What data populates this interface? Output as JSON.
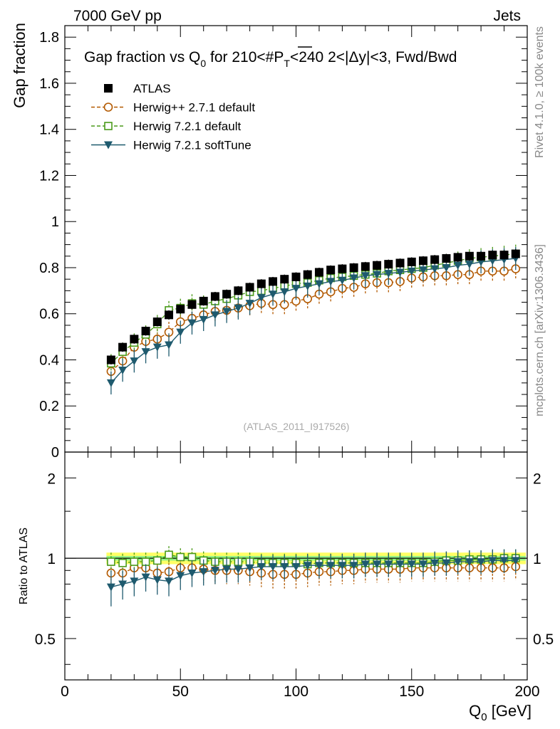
{
  "header": {
    "left": "7000 GeV pp",
    "right": "Jets"
  },
  "side": {
    "rivet": "Rivet 4.1.0, ≥ 100k events",
    "mcplots": "mcplots.cern.ch [arXiv:1306.3436]"
  },
  "analysis_id": "(ATLAS_2011_I917526)",
  "chart_data": [
    {
      "type": "scatter",
      "panel": "main",
      "title_parts": {
        "a": "Gap fraction vs Q",
        "a_sub": "0",
        "b": " for 210<#",
        "c": "P",
        "c_sub": "T",
        "d": "<240  2<|Δy|<3, Fwd/Bwd"
      },
      "ylabel": "Gap fraction",
      "xlim": [
        0,
        200
      ],
      "ylim": [
        0,
        1.85
      ],
      "yticks": [
        0,
        0.2,
        0.4,
        0.6,
        0.8,
        1,
        1.2,
        1.4,
        1.6,
        1.8
      ],
      "ytick_labels": [
        "0",
        "0.2",
        "0.4",
        "0.6",
        "0.8",
        "1",
        "1.2",
        "1.4",
        "1.6",
        "1.8"
      ],
      "x": [
        20,
        25,
        30,
        35,
        40,
        45,
        50,
        55,
        60,
        65,
        70,
        75,
        80,
        85,
        90,
        95,
        100,
        105,
        110,
        115,
        120,
        125,
        130,
        135,
        140,
        145,
        150,
        155,
        160,
        165,
        170,
        175,
        180,
        185,
        190,
        195
      ],
      "series": [
        {
          "name": "ATLAS",
          "marker": "filled-square",
          "color": "#000000",
          "line": "none",
          "values": [
            0.4,
            0.455,
            0.49,
            0.525,
            0.565,
            0.595,
            0.62,
            0.64,
            0.655,
            0.675,
            0.685,
            0.7,
            0.715,
            0.73,
            0.74,
            0.75,
            0.76,
            0.77,
            0.78,
            0.79,
            0.795,
            0.8,
            0.805,
            0.81,
            0.815,
            0.82,
            0.825,
            0.83,
            0.835,
            0.84,
            0.845,
            0.85,
            0.85,
            0.855,
            0.855,
            0.86
          ],
          "err": [
            0.02,
            0.02,
            0.02,
            0.02,
            0.02,
            0.02,
            0.02,
            0.02,
            0.02,
            0.02,
            0.02,
            0.02,
            0.02,
            0.02,
            0.02,
            0.02,
            0.02,
            0.02,
            0.02,
            0.02,
            0.02,
            0.02,
            0.02,
            0.02,
            0.02,
            0.02,
            0.02,
            0.02,
            0.02,
            0.02,
            0.02,
            0.02,
            0.02,
            0.02,
            0.02,
            0.02
          ]
        },
        {
          "name": "Herwig++ 2.7.1 default",
          "marker": "open-circle",
          "color": "#b35900",
          "line": "dashed",
          "values": [
            0.35,
            0.395,
            0.455,
            0.48,
            0.49,
            0.52,
            0.565,
            0.58,
            0.595,
            0.61,
            0.615,
            0.625,
            0.635,
            0.645,
            0.64,
            0.64,
            0.655,
            0.665,
            0.685,
            0.695,
            0.71,
            0.715,
            0.73,
            0.735,
            0.735,
            0.74,
            0.755,
            0.76,
            0.765,
            0.765,
            0.77,
            0.77,
            0.785,
            0.785,
            0.785,
            0.795
          ],
          "err": [
            0.045,
            0.045,
            0.045,
            0.045,
            0.045,
            0.045,
            0.045,
            0.045,
            0.045,
            0.045,
            0.045,
            0.045,
            0.045,
            0.045,
            0.045,
            0.045,
            0.045,
            0.045,
            0.045,
            0.045,
            0.045,
            0.045,
            0.045,
            0.045,
            0.045,
            0.045,
            0.045,
            0.045,
            0.045,
            0.045,
            0.045,
            0.045,
            0.045,
            0.045,
            0.045,
            0.045
          ]
        },
        {
          "name": "Herwig 7.2.1 default",
          "marker": "open-square",
          "color": "#4a9a1a",
          "line": "dashed",
          "values": [
            0.385,
            0.435,
            0.475,
            0.51,
            0.555,
            0.615,
            0.625,
            0.645,
            0.64,
            0.655,
            0.665,
            0.68,
            0.695,
            0.7,
            0.71,
            0.72,
            0.73,
            0.735,
            0.745,
            0.755,
            0.76,
            0.765,
            0.77,
            0.775,
            0.785,
            0.79,
            0.795,
            0.8,
            0.81,
            0.82,
            0.83,
            0.84,
            0.845,
            0.85,
            0.855,
            0.86
          ],
          "err": [
            0.04,
            0.04,
            0.04,
            0.04,
            0.04,
            0.04,
            0.04,
            0.04,
            0.04,
            0.04,
            0.04,
            0.04,
            0.04,
            0.04,
            0.04,
            0.04,
            0.04,
            0.04,
            0.04,
            0.04,
            0.04,
            0.04,
            0.04,
            0.04,
            0.04,
            0.04,
            0.04,
            0.04,
            0.04,
            0.04,
            0.04,
            0.04,
            0.04,
            0.04,
            0.04,
            0.04
          ]
        },
        {
          "name": "Herwig 7.2.1 softTune",
          "marker": "filled-triangle-down",
          "color": "#1e5a6e",
          "line": "solid",
          "values": [
            0.3,
            0.355,
            0.395,
            0.435,
            0.455,
            0.465,
            0.52,
            0.56,
            0.575,
            0.595,
            0.61,
            0.625,
            0.645,
            0.67,
            0.685,
            0.695,
            0.71,
            0.72,
            0.73,
            0.74,
            0.745,
            0.755,
            0.765,
            0.77,
            0.775,
            0.78,
            0.785,
            0.79,
            0.795,
            0.8,
            0.81,
            0.815,
            0.825,
            0.83,
            0.835,
            0.84
          ],
          "err": [
            0.05,
            0.05,
            0.05,
            0.05,
            0.05,
            0.05,
            0.05,
            0.05,
            0.05,
            0.05,
            0.05,
            0.05,
            0.05,
            0.05,
            0.05,
            0.05,
            0.05,
            0.05,
            0.05,
            0.05,
            0.05,
            0.05,
            0.05,
            0.05,
            0.05,
            0.05,
            0.05,
            0.05,
            0.05,
            0.05,
            0.05,
            0.05,
            0.05,
            0.05,
            0.05,
            0.05
          ]
        }
      ]
    },
    {
      "type": "scatter",
      "panel": "ratio",
      "ylabel": "Ratio to ATLAS",
      "xlabel_main": "Q",
      "xlabel_sub": "0",
      "xlabel_unit": " [GeV]",
      "xlim": [
        0,
        200
      ],
      "ylim": [
        0.35,
        2.5
      ],
      "yscale": "log",
      "xticks": [
        0,
        50,
        100,
        150,
        200
      ],
      "xtick_labels": [
        "0",
        "50",
        "100",
        "150",
        "200"
      ],
      "yticks": [
        0.5,
        1,
        2
      ],
      "ytick_labels": [
        "0.5",
        "1",
        "2"
      ],
      "x": [
        20,
        25,
        30,
        35,
        40,
        45,
        50,
        55,
        60,
        65,
        70,
        75,
        80,
        85,
        90,
        95,
        100,
        105,
        110,
        115,
        120,
        125,
        130,
        135,
        140,
        145,
        150,
        155,
        160,
        165,
        170,
        175,
        180,
        185,
        190,
        195
      ],
      "band": {
        "name": "ATLAS uncertainty",
        "low": 0.95,
        "high": 1.05,
        "color": "#ffff66",
        "inner_color": "#66ee99"
      },
      "series": [
        {
          "name": "Herwig++ 2.7.1 default",
          "marker": "open-circle",
          "color": "#b35900",
          "line": "dashed",
          "values": [
            0.88,
            0.88,
            0.92,
            0.92,
            0.88,
            0.89,
            0.92,
            0.92,
            0.91,
            0.9,
            0.9,
            0.9,
            0.89,
            0.88,
            0.87,
            0.87,
            0.87,
            0.88,
            0.89,
            0.89,
            0.9,
            0.9,
            0.91,
            0.91,
            0.91,
            0.91,
            0.92,
            0.92,
            0.92,
            0.92,
            0.92,
            0.92,
            0.92,
            0.92,
            0.92,
            0.93
          ],
          "err": [
            0.1,
            0.1,
            0.1,
            0.1,
            0.1,
            0.1,
            0.1,
            0.1,
            0.1,
            0.1,
            0.1,
            0.1,
            0.1,
            0.1,
            0.1,
            0.1,
            0.1,
            0.1,
            0.1,
            0.1,
            0.1,
            0.1,
            0.1,
            0.1,
            0.1,
            0.1,
            0.1,
            0.1,
            0.1,
            0.1,
            0.1,
            0.1,
            0.1,
            0.1,
            0.1,
            0.1
          ]
        },
        {
          "name": "Herwig 7.2.1 default",
          "marker": "open-square",
          "color": "#4a9a1a",
          "line": "dashed",
          "values": [
            0.97,
            0.96,
            0.97,
            0.97,
            0.98,
            1.03,
            1.01,
            1.01,
            0.98,
            0.97,
            0.97,
            0.97,
            0.97,
            0.96,
            0.96,
            0.96,
            0.96,
            0.95,
            0.96,
            0.96,
            0.96,
            0.96,
            0.96,
            0.96,
            0.96,
            0.96,
            0.96,
            0.96,
            0.97,
            0.98,
            0.98,
            0.99,
            0.99,
            0.99,
            1.0,
            1.0
          ],
          "err": [
            0.08,
            0.08,
            0.08,
            0.08,
            0.08,
            0.08,
            0.08,
            0.08,
            0.08,
            0.08,
            0.08,
            0.08,
            0.08,
            0.08,
            0.08,
            0.08,
            0.08,
            0.08,
            0.08,
            0.08,
            0.08,
            0.08,
            0.08,
            0.08,
            0.08,
            0.08,
            0.08,
            0.08,
            0.08,
            0.08,
            0.08,
            0.08,
            0.08,
            0.08,
            0.08,
            0.08
          ]
        },
        {
          "name": "Herwig 7.2.1 softTune",
          "marker": "filled-triangle-down",
          "color": "#1e5a6e",
          "line": "solid",
          "values": [
            0.78,
            0.8,
            0.82,
            0.85,
            0.83,
            0.82,
            0.86,
            0.88,
            0.89,
            0.9,
            0.91,
            0.91,
            0.92,
            0.93,
            0.93,
            0.93,
            0.93,
            0.94,
            0.94,
            0.94,
            0.94,
            0.94,
            0.95,
            0.95,
            0.95,
            0.95,
            0.95,
            0.95,
            0.96,
            0.96,
            0.97,
            0.97,
            0.97,
            0.98,
            0.98,
            0.98
          ],
          "err": [
            0.12,
            0.1,
            0.1,
            0.1,
            0.1,
            0.1,
            0.1,
            0.1,
            0.1,
            0.1,
            0.1,
            0.1,
            0.1,
            0.1,
            0.1,
            0.1,
            0.1,
            0.1,
            0.1,
            0.1,
            0.1,
            0.1,
            0.1,
            0.1,
            0.1,
            0.1,
            0.1,
            0.1,
            0.1,
            0.1,
            0.1,
            0.1,
            0.1,
            0.1,
            0.1,
            0.1
          ]
        }
      ]
    }
  ]
}
